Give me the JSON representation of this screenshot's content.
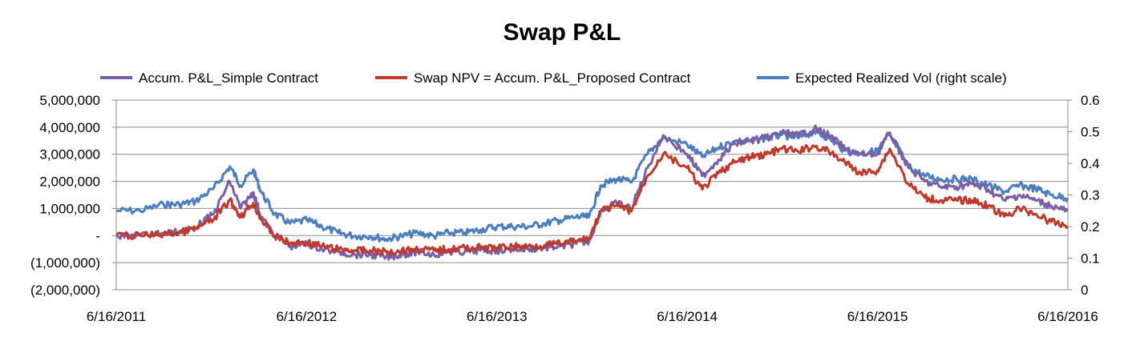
{
  "chart_data": {
    "type": "line",
    "title": "Swap P&L",
    "xlabel": "",
    "ylabel": "",
    "legend_position": "top",
    "grid": "horizontal",
    "x_ticks": [
      "6/16/2011",
      "6/16/2012",
      "6/16/2013",
      "6/16/2014",
      "6/16/2015",
      "6/16/2016"
    ],
    "xlim": [
      "2011-06-16",
      "2016-06-16"
    ],
    "y_left": {
      "ylim": [
        -2000000,
        5000000
      ],
      "ticks": [
        5000000,
        4000000,
        3000000,
        2000000,
        1000000,
        0,
        -1000000,
        -2000000
      ],
      "tick_labels": [
        "5,000,000",
        "4,000,000",
        "3,000,000",
        "2,000,000",
        "1,000,000",
        "-",
        "(1,000,000)",
        "(2,000,000)"
      ]
    },
    "y_right": {
      "ylim": [
        0,
        0.6
      ],
      "ticks": [
        0.6,
        0.5,
        0.4,
        0.3,
        0.2,
        0.1,
        0
      ],
      "tick_labels": [
        "0.6",
        "0.5",
        "0.4",
        "0.3",
        "0.2",
        "0.1",
        "0"
      ]
    },
    "series": [
      {
        "name": "Accum. P&L_Simple Contract",
        "axis": "left",
        "color": "#7b5ea7",
        "points": [
          [
            "2011-06-16",
            0
          ],
          [
            "2011-08-01",
            0
          ],
          [
            "2011-09-15",
            100000
          ],
          [
            "2011-10-15",
            150000
          ],
          [
            "2011-11-15",
            300000
          ],
          [
            "2011-12-20",
            800000
          ],
          [
            "2012-01-20",
            2000000
          ],
          [
            "2012-02-10",
            1000000
          ],
          [
            "2012-03-05",
            1600000
          ],
          [
            "2012-03-20",
            700000
          ],
          [
            "2012-04-15",
            0
          ],
          [
            "2012-05-15",
            -400000
          ],
          [
            "2012-06-16",
            -300000
          ],
          [
            "2012-07-15",
            -500000
          ],
          [
            "2012-08-15",
            -600000
          ],
          [
            "2012-09-15",
            -700000
          ],
          [
            "2012-10-15",
            -700000
          ],
          [
            "2012-11-15",
            -800000
          ],
          [
            "2012-12-15",
            -700000
          ],
          [
            "2013-01-15",
            -600000
          ],
          [
            "2013-02-15",
            -700000
          ],
          [
            "2013-03-15",
            -600000
          ],
          [
            "2013-04-15",
            -600000
          ],
          [
            "2013-05-15",
            -550000
          ],
          [
            "2013-06-16",
            -550000
          ],
          [
            "2013-07-15",
            -500000
          ],
          [
            "2013-08-15",
            -500000
          ],
          [
            "2013-09-15",
            -450000
          ],
          [
            "2013-10-15",
            -400000
          ],
          [
            "2013-11-15",
            -300000
          ],
          [
            "2013-12-10",
            -200000
          ],
          [
            "2014-01-01",
            900000
          ],
          [
            "2014-02-01",
            1200000
          ],
          [
            "2014-03-01",
            1000000
          ],
          [
            "2014-04-01",
            2500000
          ],
          [
            "2014-05-01",
            3700000
          ],
          [
            "2014-06-16",
            3000000
          ],
          [
            "2014-07-15",
            2200000
          ],
          [
            "2014-08-15",
            2800000
          ],
          [
            "2014-09-15",
            3400000
          ],
          [
            "2014-10-15",
            3500000
          ],
          [
            "2014-11-15",
            3600000
          ],
          [
            "2014-12-15",
            3800000
          ],
          [
            "2015-01-15",
            3700000
          ],
          [
            "2015-02-15",
            3950000
          ],
          [
            "2015-03-15",
            3700000
          ],
          [
            "2015-04-15",
            3200000
          ],
          [
            "2015-05-15",
            3000000
          ],
          [
            "2015-06-16",
            3000000
          ],
          [
            "2015-07-10",
            3800000
          ],
          [
            "2015-08-15",
            2500000
          ],
          [
            "2015-09-15",
            2000000
          ],
          [
            "2015-10-15",
            1800000
          ],
          [
            "2015-11-15",
            1800000
          ],
          [
            "2015-12-15",
            1900000
          ],
          [
            "2016-01-15",
            1700000
          ],
          [
            "2016-02-15",
            1300000
          ],
          [
            "2016-03-15",
            1500000
          ],
          [
            "2016-04-15",
            1300000
          ],
          [
            "2016-05-15",
            1100000
          ],
          [
            "2016-06-16",
            900000
          ]
        ]
      },
      {
        "name": "Swap NPV = Accum. P&L_Proposed Contract",
        "axis": "left",
        "color": "#c0392b",
        "points": [
          [
            "2011-06-16",
            0
          ],
          [
            "2011-08-01",
            0
          ],
          [
            "2011-09-15",
            50000
          ],
          [
            "2011-10-15",
            100000
          ],
          [
            "2011-11-15",
            250000
          ],
          [
            "2011-12-20",
            600000
          ],
          [
            "2012-01-20",
            1300000
          ],
          [
            "2012-02-10",
            700000
          ],
          [
            "2012-03-05",
            1200000
          ],
          [
            "2012-03-20",
            600000
          ],
          [
            "2012-04-15",
            0
          ],
          [
            "2012-05-15",
            -300000
          ],
          [
            "2012-06-16",
            -250000
          ],
          [
            "2012-07-15",
            -400000
          ],
          [
            "2012-08-15",
            -500000
          ],
          [
            "2012-09-15",
            -550000
          ],
          [
            "2012-10-15",
            -550000
          ],
          [
            "2012-11-15",
            -600000
          ],
          [
            "2012-12-15",
            -550000
          ],
          [
            "2013-01-15",
            -500000
          ],
          [
            "2013-02-15",
            -550000
          ],
          [
            "2013-03-15",
            -500000
          ],
          [
            "2013-04-15",
            -450000
          ],
          [
            "2013-05-15",
            -450000
          ],
          [
            "2013-06-16",
            -450000
          ],
          [
            "2013-07-15",
            -400000
          ],
          [
            "2013-08-15",
            -400000
          ],
          [
            "2013-09-15",
            -350000
          ],
          [
            "2013-10-15",
            -300000
          ],
          [
            "2013-11-15",
            -200000
          ],
          [
            "2013-12-10",
            -100000
          ],
          [
            "2014-01-01",
            900000
          ],
          [
            "2014-02-01",
            1100000
          ],
          [
            "2014-03-01",
            900000
          ],
          [
            "2014-04-01",
            2200000
          ],
          [
            "2014-05-01",
            3000000
          ],
          [
            "2014-06-16",
            2500000
          ],
          [
            "2014-07-15",
            1700000
          ],
          [
            "2014-08-15",
            2300000
          ],
          [
            "2014-09-15",
            2700000
          ],
          [
            "2014-10-15",
            2900000
          ],
          [
            "2014-11-15",
            3000000
          ],
          [
            "2014-12-15",
            3200000
          ],
          [
            "2015-01-15",
            3100000
          ],
          [
            "2015-02-15",
            3300000
          ],
          [
            "2015-03-15",
            3100000
          ],
          [
            "2015-04-15",
            2700000
          ],
          [
            "2015-05-15",
            2300000
          ],
          [
            "2015-06-16",
            2400000
          ],
          [
            "2015-07-10",
            3200000
          ],
          [
            "2015-08-15",
            1900000
          ],
          [
            "2015-09-15",
            1400000
          ],
          [
            "2015-10-15",
            1300000
          ],
          [
            "2015-11-15",
            1300000
          ],
          [
            "2015-12-15",
            1300000
          ],
          [
            "2016-01-15",
            1100000
          ],
          [
            "2016-02-15",
            700000
          ],
          [
            "2016-03-15",
            1000000
          ],
          [
            "2016-04-15",
            800000
          ],
          [
            "2016-05-15",
            500000
          ],
          [
            "2016-06-16",
            350000
          ]
        ]
      },
      {
        "name": "Expected Realized Vol (right scale)",
        "axis": "right",
        "color": "#4a7ebf",
        "points": [
          [
            "2011-06-16",
            0.25
          ],
          [
            "2011-08-01",
            0.25
          ],
          [
            "2011-09-15",
            0.27
          ],
          [
            "2011-10-15",
            0.27
          ],
          [
            "2011-11-15",
            0.28
          ],
          [
            "2011-12-20",
            0.32
          ],
          [
            "2012-01-20",
            0.39
          ],
          [
            "2012-02-10",
            0.33
          ],
          [
            "2012-03-05",
            0.38
          ],
          [
            "2012-03-20",
            0.31
          ],
          [
            "2012-04-15",
            0.24
          ],
          [
            "2012-05-15",
            0.21
          ],
          [
            "2012-06-16",
            0.22
          ],
          [
            "2012-07-15",
            0.2
          ],
          [
            "2012-08-15",
            0.18
          ],
          [
            "2012-09-15",
            0.17
          ],
          [
            "2012-10-15",
            0.17
          ],
          [
            "2012-11-15",
            0.16
          ],
          [
            "2012-12-15",
            0.17
          ],
          [
            "2013-01-15",
            0.18
          ],
          [
            "2013-02-15",
            0.17
          ],
          [
            "2013-03-15",
            0.18
          ],
          [
            "2013-04-15",
            0.18
          ],
          [
            "2013-05-15",
            0.19
          ],
          [
            "2013-06-16",
            0.2
          ],
          [
            "2013-07-15",
            0.2
          ],
          [
            "2013-08-15",
            0.2
          ],
          [
            "2013-09-15",
            0.21
          ],
          [
            "2013-10-15",
            0.22
          ],
          [
            "2013-11-15",
            0.23
          ],
          [
            "2013-12-10",
            0.23
          ],
          [
            "2014-01-01",
            0.33
          ],
          [
            "2014-02-01",
            0.35
          ],
          [
            "2014-03-01",
            0.34
          ],
          [
            "2014-04-01",
            0.43
          ],
          [
            "2014-05-01",
            0.48
          ],
          [
            "2014-06-16",
            0.46
          ],
          [
            "2014-07-15",
            0.42
          ],
          [
            "2014-08-15",
            0.45
          ],
          [
            "2014-09-15",
            0.47
          ],
          [
            "2014-10-15",
            0.47
          ],
          [
            "2014-11-15",
            0.48
          ],
          [
            "2014-12-15",
            0.49
          ],
          [
            "2015-01-15",
            0.48
          ],
          [
            "2015-02-15",
            0.5
          ],
          [
            "2015-03-15",
            0.48
          ],
          [
            "2015-04-15",
            0.44
          ],
          [
            "2015-05-15",
            0.43
          ],
          [
            "2015-06-16",
            0.44
          ],
          [
            "2015-07-10",
            0.49
          ],
          [
            "2015-08-15",
            0.39
          ],
          [
            "2015-09-15",
            0.36
          ],
          [
            "2015-10-15",
            0.35
          ],
          [
            "2015-11-15",
            0.35
          ],
          [
            "2015-12-15",
            0.35
          ],
          [
            "2016-01-15",
            0.33
          ],
          [
            "2016-02-15",
            0.31
          ],
          [
            "2016-03-15",
            0.33
          ],
          [
            "2016-04-15",
            0.32
          ],
          [
            "2016-05-15",
            0.3
          ],
          [
            "2016-06-16",
            0.29
          ]
        ]
      }
    ]
  }
}
